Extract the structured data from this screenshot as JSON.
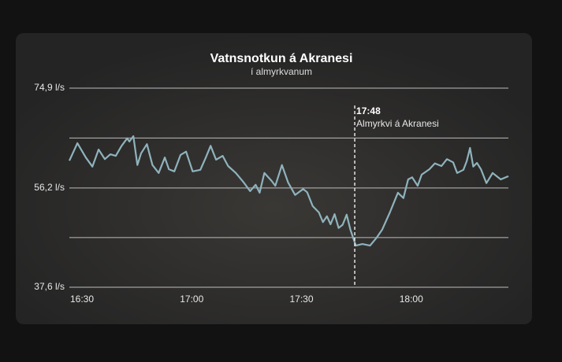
{
  "chart_data": {
    "type": "line",
    "title": "Vatnsnotkun á Akranesi",
    "subtitle": "í almyrkvanum",
    "color": "#8fb3bd",
    "grid": true,
    "x": [
      990,
      992.2,
      994.5,
      996.3,
      998,
      999.7,
      1001.2,
      1002.7,
      1004.2,
      1005.8,
      1006.4,
      1007.5,
      1008.6,
      1009.6,
      1011.2,
      1012.7,
      1014.4,
      1016.1,
      1017.2,
      1018.7,
      1020.4,
      1021.9,
      1023.7,
      1025.8,
      1027.3,
      1028.6,
      1030.1,
      1031.9,
      1033.4,
      1035.5,
      1037.7,
      1039.4,
      1040.9,
      1042,
      1043.3,
      1045.3,
      1046.3,
      1048.1,
      1049.8,
      1051.7,
      1053.9,
      1055,
      1056.5,
      1058.2,
      1059.3,
      1060.4,
      1061.4,
      1062.5,
      1063.6,
      1064.7,
      1065.8,
      1066.8,
      1068.3,
      1070.1,
      1072.2,
      1074,
      1075.5,
      1077.6,
      1079.8,
      1081.3,
      1082.6,
      1083.7,
      1085.2,
      1086.3,
      1088.4,
      1089.9,
      1091.7,
      1093.2,
      1094.9,
      1096,
      1097.7,
      1098.6,
      1099.5,
      1100.4,
      1101.4,
      1102.5,
      1104,
      1105.7,
      1107.9,
      1110
    ],
    "values": [
      61.3,
      64.6,
      61.9,
      60.2,
      63.4,
      61.6,
      62.5,
      62.2,
      64.0,
      65.5,
      64.9,
      65.9,
      60.5,
      62.7,
      64.4,
      60.5,
      59.0,
      61.9,
      59.7,
      59.3,
      62.4,
      63.0,
      59.3,
      59.6,
      61.9,
      64.1,
      61.5,
      62.2,
      60.3,
      59.0,
      57.2,
      55.6,
      56.8,
      55.3,
      59.0,
      57.5,
      56.6,
      60.5,
      57.2,
      54.9,
      56.0,
      55.4,
      52.8,
      51.6,
      49.8,
      50.9,
      49.4,
      51.3,
      48.7,
      49.3,
      51.2,
      48.4,
      45.4,
      45.7,
      45.4,
      46.9,
      48.4,
      51.6,
      55.3,
      54.3,
      57.8,
      58.2,
      56.6,
      58.7,
      59.7,
      60.8,
      60.3,
      61.6,
      61.0,
      59.0,
      59.6,
      61.2,
      63.7,
      60.2,
      60.9,
      59.7,
      57.1,
      59.0,
      57.8,
      58.4
    ],
    "xlim": [
      990,
      1110
    ],
    "xticks": [
      {
        "value": 990,
        "label": "16:30"
      },
      {
        "value": 1020,
        "label": "17:00"
      },
      {
        "value": 1050,
        "label": "17:30"
      },
      {
        "value": 1080,
        "label": "18:00"
      }
    ],
    "ylim": [
      37.6,
      74.9
    ],
    "yticks": [
      {
        "value": 37.6,
        "label": "37,6 l/s"
      },
      {
        "value": 46.9,
        "label": null
      },
      {
        "value": 56.2,
        "label": "56,2 l/s"
      },
      {
        "value": 65.55,
        "label": null
      },
      {
        "value": 74.9,
        "label": "74,9 l/s"
      }
    ],
    "annotation": {
      "x": {
        "value": 1068,
        "label": "17:48"
      },
      "text": "Almyrkvi á Akranesi"
    }
  }
}
